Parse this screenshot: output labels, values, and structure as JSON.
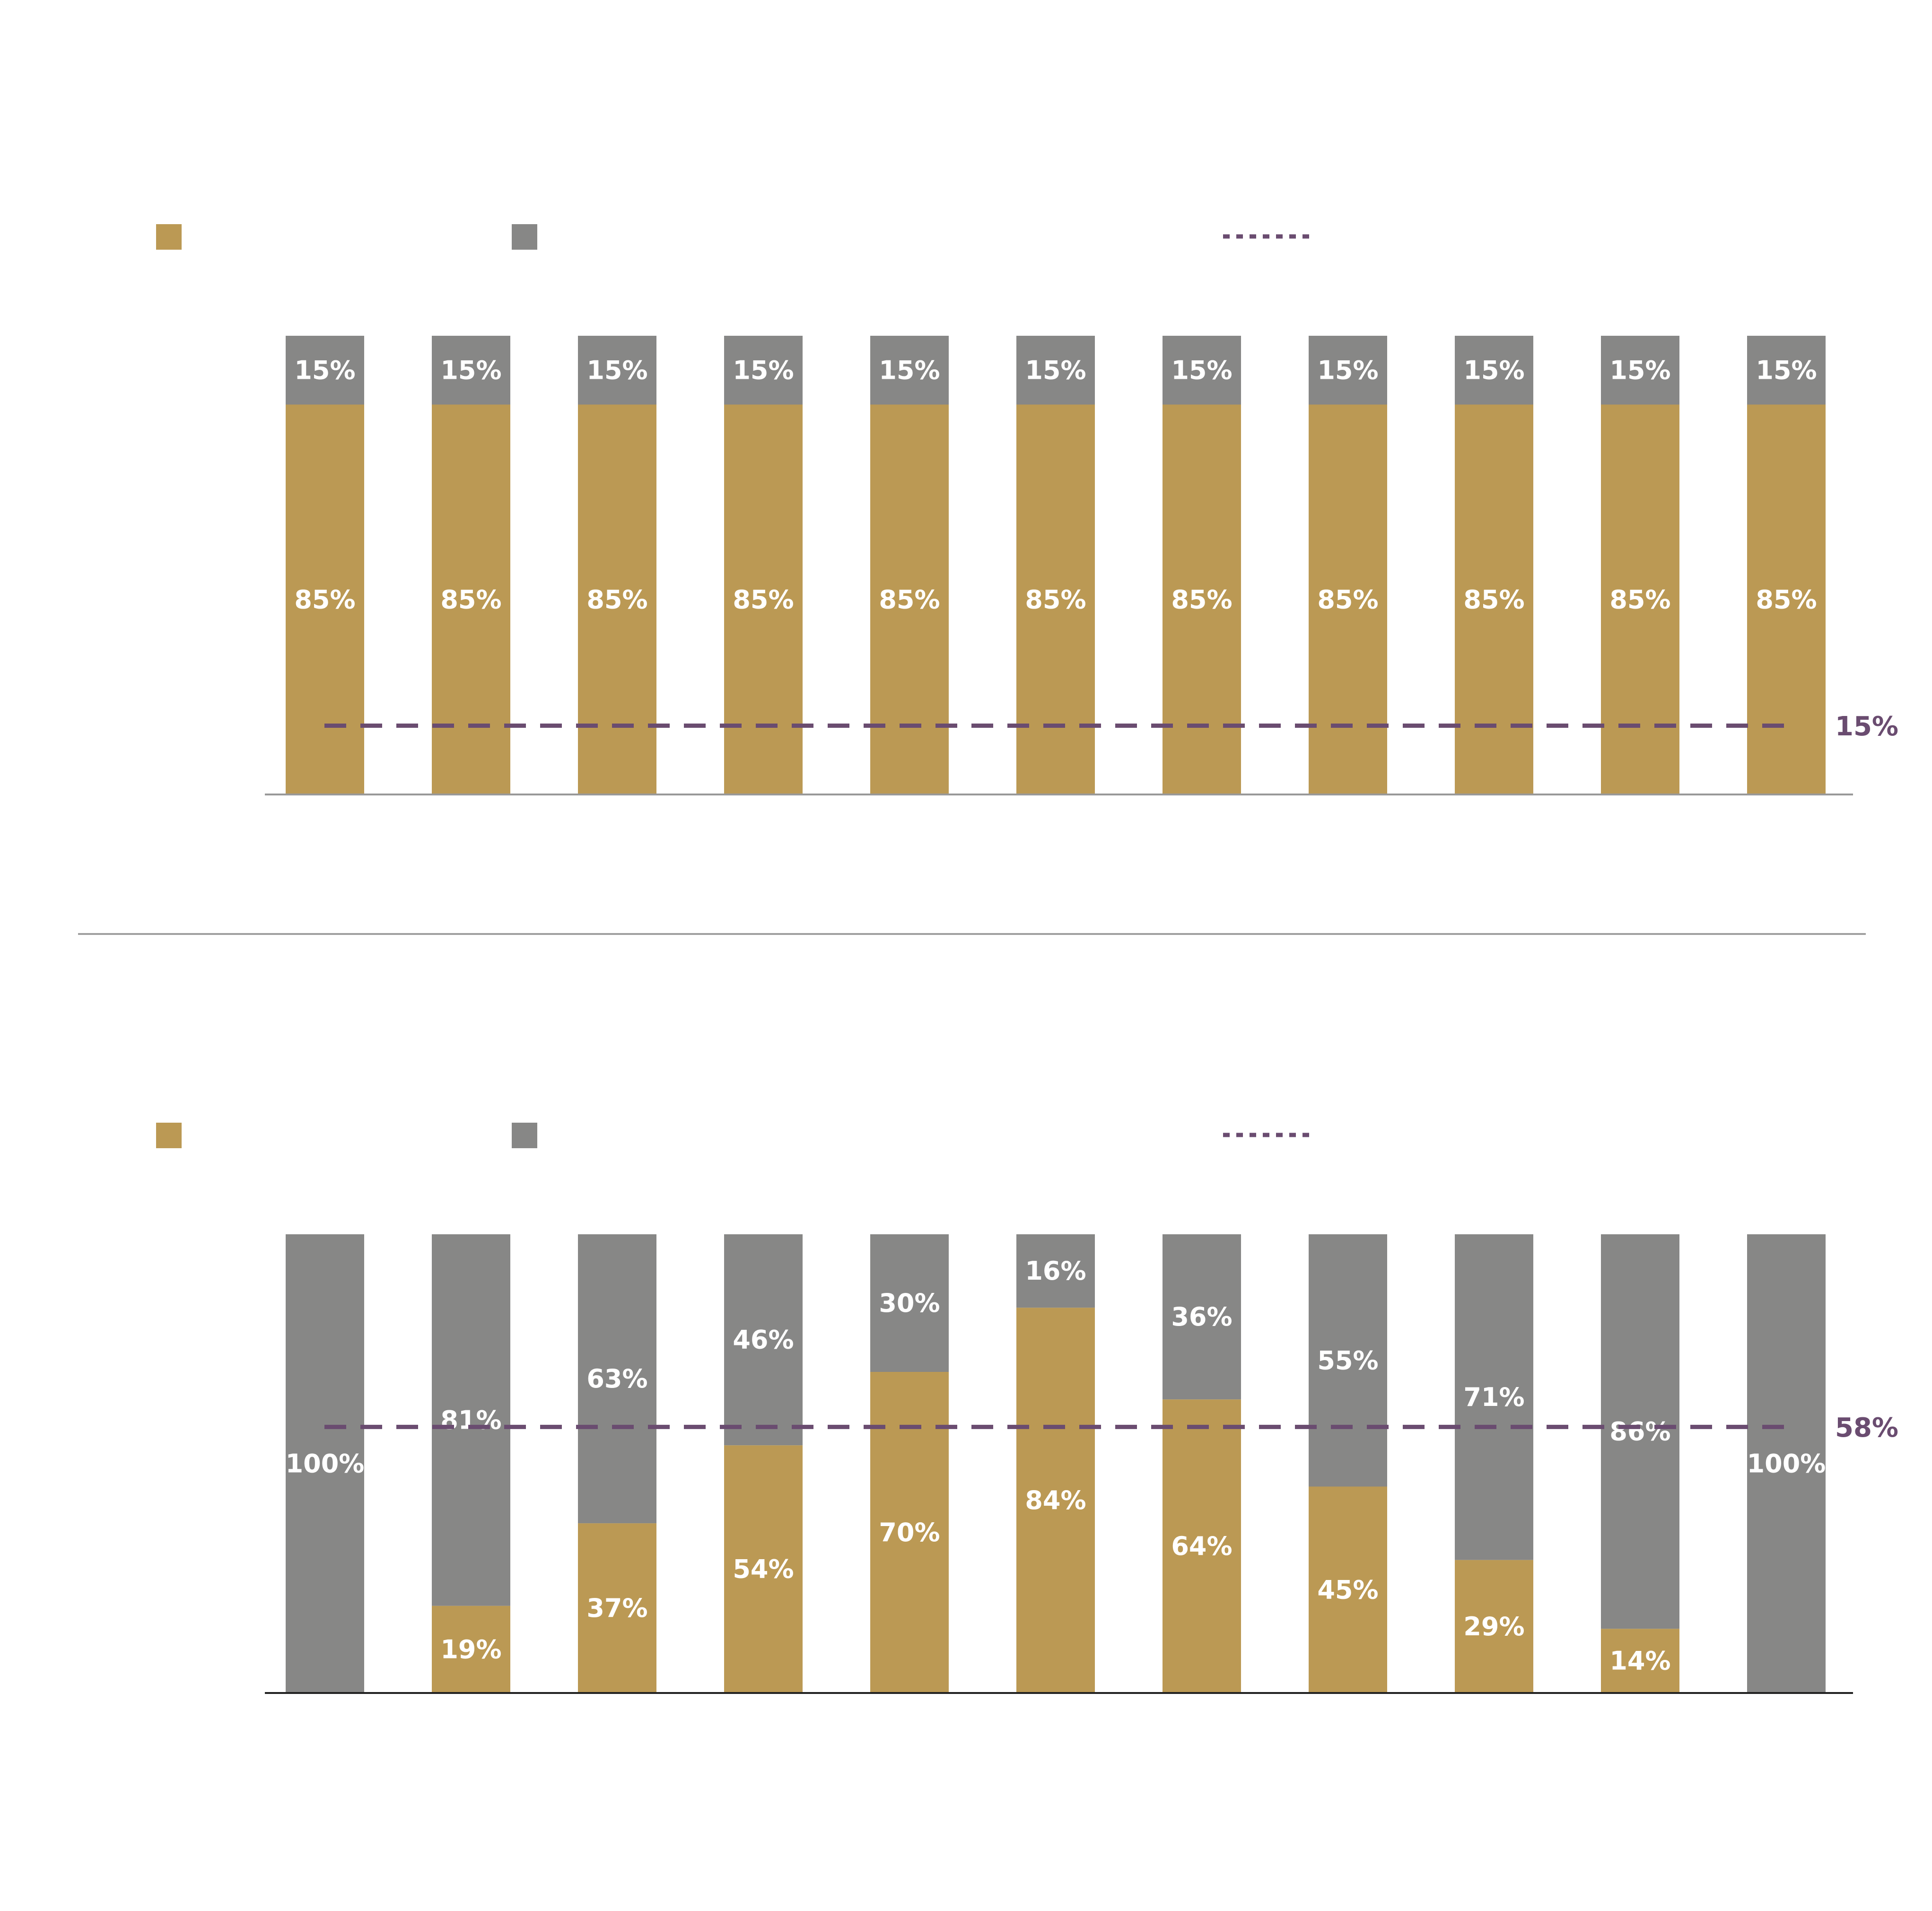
{
  "colors": {
    "series_a": "#bb9954",
    "series_b": "#878786",
    "reference": "#6a4c70",
    "axis_top": "#999999",
    "axis_bottom": "#222222",
    "divider": "#a0a0a0"
  },
  "chart_data": [
    {
      "type": "bar",
      "stacked": true,
      "ylim": [
        0,
        100
      ],
      "categories": [
        "",
        "",
        "",
        "",
        "",
        "",
        "",
        "",
        "",
        "",
        ""
      ],
      "series": [
        {
          "values": [
            85,
            85,
            85,
            85,
            85,
            85,
            85,
            85,
            85,
            85,
            85
          ]
        },
        {
          "values": [
            15,
            15,
            15,
            15,
            15,
            15,
            15,
            15,
            15,
            15,
            15
          ]
        }
      ],
      "labels": {
        "a": [
          "85%",
          "85%",
          "85%",
          "85%",
          "85%",
          "85%",
          "85%",
          "85%",
          "85%",
          "85%",
          "85%"
        ],
        "b": [
          "15%",
          "15%",
          "15%",
          "15%",
          "15%",
          "15%",
          "15%",
          "15%",
          "15%",
          "15%",
          "15%"
        ]
      },
      "reference": {
        "value": 15,
        "label": "15%"
      },
      "legend": [
        "",
        "",
        ""
      ]
    },
    {
      "type": "bar",
      "stacked": true,
      "ylim": [
        0,
        100
      ],
      "categories": [
        "",
        "",
        "",
        "",
        "",
        "",
        "",
        "",
        "",
        "",
        ""
      ],
      "series": [
        {
          "values": [
            0,
            19,
            37,
            54,
            70,
            84,
            64,
            45,
            29,
            14,
            0
          ]
        },
        {
          "values": [
            100,
            81,
            63,
            46,
            30,
            16,
            36,
            55,
            71,
            86,
            100
          ]
        }
      ],
      "labels": {
        "a": [
          "",
          "19%",
          "37%",
          "54%",
          "70%",
          "84%",
          "64%",
          "45%",
          "29%",
          "14%",
          ""
        ],
        "b": [
          "100%",
          "81%",
          "63%",
          "46%",
          "30%",
          "16%",
          "36%",
          "55%",
          "71%",
          "86%",
          "100%"
        ]
      },
      "reference": {
        "value": 58,
        "label": "58%"
      },
      "legend": [
        "",
        "",
        ""
      ]
    }
  ]
}
